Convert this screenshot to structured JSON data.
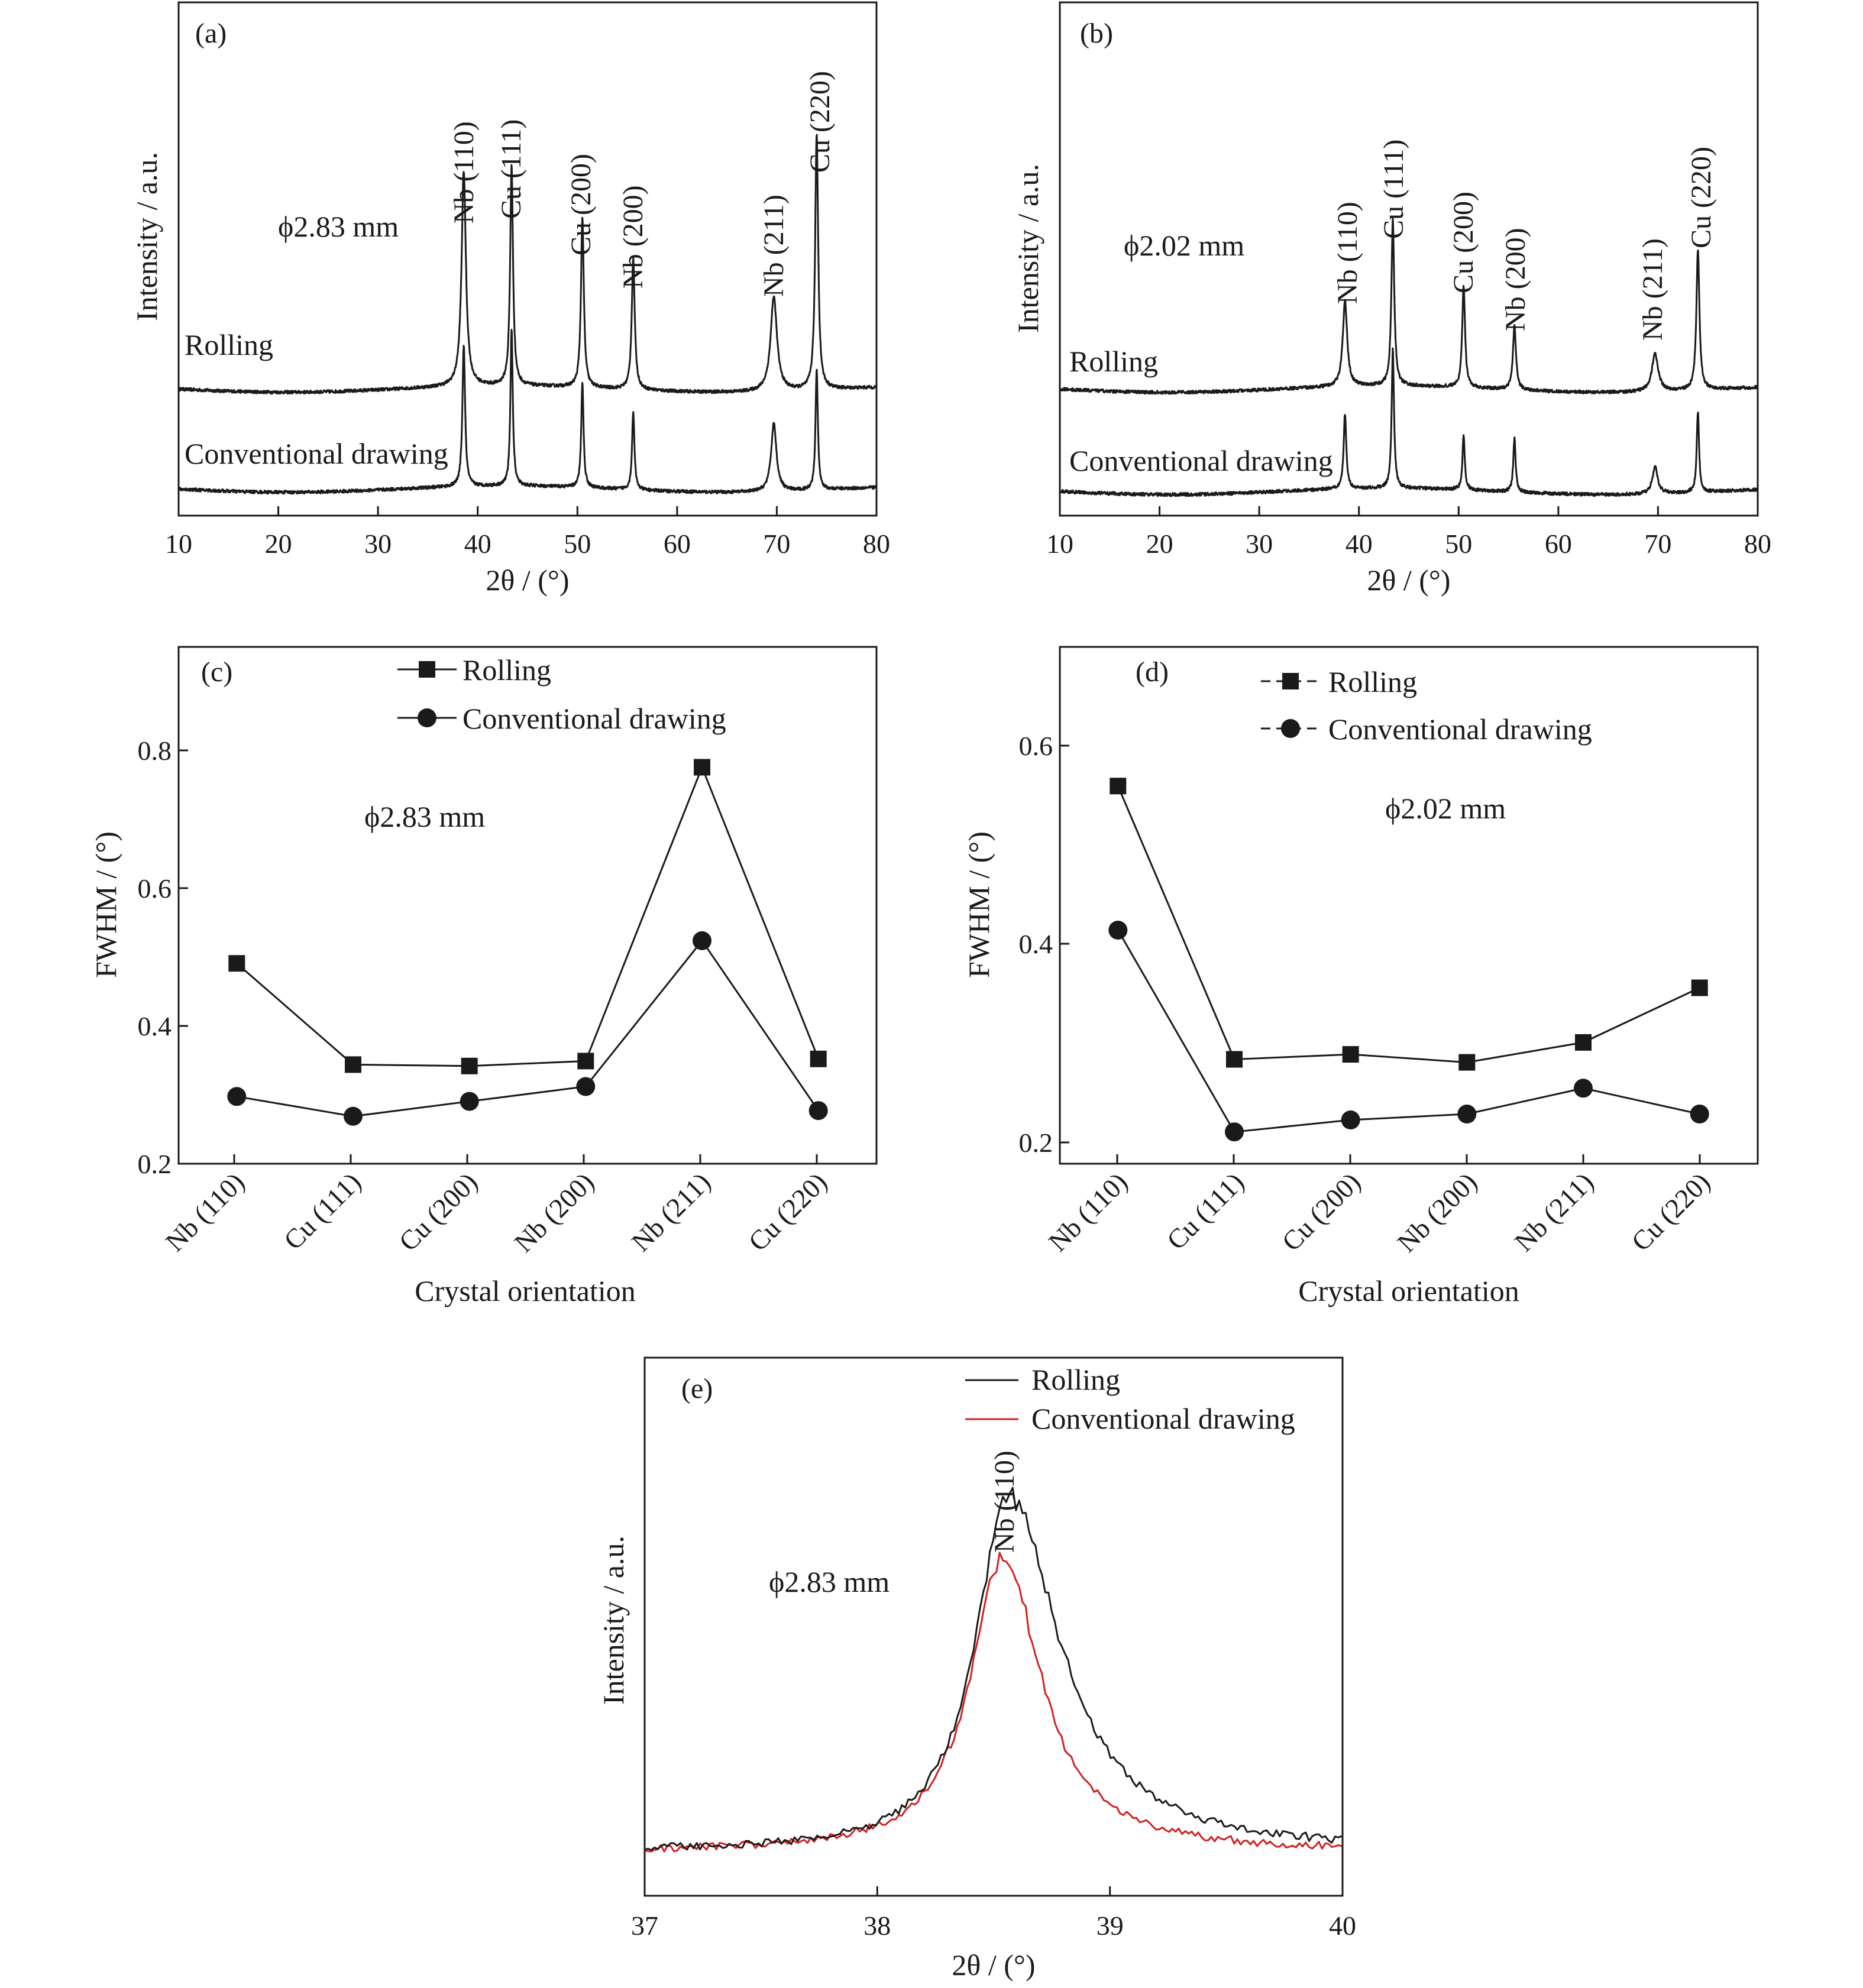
{
  "colors": {
    "axis": "#1a1a1a",
    "rolling": "#1a1a1a",
    "conventional": "#1a1a1a",
    "conventional_e": "#d42020"
  },
  "chart_data": [
    {
      "id": "a",
      "type": "line",
      "panel_label": "(a)",
      "annotation": "ϕ2.83 mm",
      "xlabel": "2θ / (°)",
      "ylabel": "Intensity / a.u.",
      "xlim": [
        10,
        80
      ],
      "xticks": [
        10,
        20,
        30,
        40,
        50,
        60,
        70,
        80
      ],
      "yticks_shown": false,
      "series": [
        {
          "name": "Rolling",
          "baseline": 1.0,
          "peaks": [
            [
              38.6,
              2.05,
              0.26
            ],
            [
              43.4,
              2.1,
              0.17
            ],
            [
              50.5,
              1.62,
              0.17
            ],
            [
              55.6,
              1.25,
              0.18
            ],
            [
              69.7,
              0.9,
              0.38
            ],
            [
              74.0,
              2.43,
              0.18
            ]
          ]
        },
        {
          "name": "Conventional drawing",
          "baseline": 0.05,
          "peaks": [
            [
              38.6,
              1.35,
              0.16
            ],
            [
              43.4,
              1.5,
              0.14
            ],
            [
              50.5,
              1.0,
              0.14
            ],
            [
              55.6,
              0.75,
              0.14
            ],
            [
              69.7,
              0.65,
              0.32
            ],
            [
              74.0,
              1.15,
              0.14
            ]
          ]
        }
      ],
      "peak_labels": [
        {
          "x": 38.6,
          "text": "Nb (110)"
        },
        {
          "x": 43.4,
          "text": "Cu (111)"
        },
        {
          "x": 50.5,
          "text": "Cu (200)"
        },
        {
          "x": 55.6,
          "text": "Nb (200)"
        },
        {
          "x": 69.7,
          "text": "Nb (211)"
        },
        {
          "x": 74.0,
          "text": "Cu (220)"
        }
      ]
    },
    {
      "id": "b",
      "type": "line",
      "panel_label": "(b)",
      "annotation": "ϕ2.02 mm",
      "xlabel": "2θ / (°)",
      "ylabel": "Intensity / a.u.",
      "xlim": [
        10,
        80
      ],
      "xticks": [
        10,
        20,
        30,
        40,
        50,
        60,
        70,
        80
      ],
      "yticks_shown": false,
      "series": [
        {
          "name": "Rolling",
          "baseline": 1.0,
          "peaks": [
            [
              38.6,
              0.8,
              0.26
            ],
            [
              43.4,
              1.55,
              0.17
            ],
            [
              50.5,
              0.95,
              0.17
            ],
            [
              55.6,
              0.6,
              0.18
            ],
            [
              69.7,
              0.35,
              0.38
            ],
            [
              74.0,
              1.3,
              0.18
            ]
          ]
        },
        {
          "name": "Conventional drawing",
          "baseline": 0.05,
          "peaks": [
            [
              38.6,
              0.7,
              0.16
            ],
            [
              43.4,
              1.3,
              0.14
            ],
            [
              50.5,
              0.5,
              0.14
            ],
            [
              55.6,
              0.5,
              0.14
            ],
            [
              69.7,
              0.25,
              0.32
            ],
            [
              74.0,
              0.75,
              0.14
            ]
          ]
        }
      ],
      "peak_labels": [
        {
          "x": 38.6,
          "text": "Nb (110)"
        },
        {
          "x": 43.4,
          "text": "Cu (111)"
        },
        {
          "x": 50.5,
          "text": "Cu (200)"
        },
        {
          "x": 55.6,
          "text": "Nb (200)"
        },
        {
          "x": 69.7,
          "text": "Nb (211)"
        },
        {
          "x": 74.0,
          "text": "Cu (220)"
        }
      ]
    },
    {
      "id": "c",
      "type": "line",
      "panel_label": "(c)",
      "annotation": "ϕ2.83 mm",
      "xlabel": "Crystal orientation",
      "ylabel": "FWHM / (°)",
      "categories": [
        "Nb (110)",
        "Cu (111)",
        "Cu (200)",
        "Nb (200)",
        "Nb (211)",
        "Cu (220)"
      ],
      "ylim": [
        0.2,
        0.93
      ],
      "yticks": [
        0.2,
        0.4,
        0.6,
        0.8
      ],
      "legend_position": "top-center",
      "series": [
        {
          "name": "Rolling",
          "marker": "square",
          "values": [
            0.483,
            0.34,
            0.338,
            0.345,
            0.76,
            0.348
          ]
        },
        {
          "name": "Conventional drawing",
          "marker": "circle",
          "values": [
            0.295,
            0.267,
            0.288,
            0.309,
            0.515,
            0.275
          ]
        }
      ]
    },
    {
      "id": "d",
      "type": "line",
      "panel_label": "(d)",
      "annotation": "ϕ2.02 mm",
      "xlabel": "Crystal orientation",
      "ylabel": "FWHM / (°)",
      "categories": [
        "Nb (110)",
        "Cu (111)",
        "Cu (200)",
        "Nb (200)",
        "Nb (211)",
        "Cu (220)"
      ],
      "ylim": [
        0.18,
        0.7
      ],
      "yticks": [
        0.2,
        0.4,
        0.6
      ],
      "legend_position": "top-center",
      "series": [
        {
          "name": "Rolling",
          "marker": "square",
          "values": [
            0.56,
            0.285,
            0.29,
            0.282,
            0.302,
            0.357
          ]
        },
        {
          "name": "Conventional drawing",
          "marker": "circle",
          "values": [
            0.415,
            0.212,
            0.224,
            0.23,
            0.256,
            0.23
          ]
        }
      ]
    },
    {
      "id": "e",
      "type": "line",
      "panel_label": "(e)",
      "annotation": "ϕ2.83 mm",
      "peak_label": "Nb (110)",
      "xlabel": "2θ / (°)",
      "ylabel": "Intensity / a.u.",
      "xlim": [
        37,
        40
      ],
      "xticks": [
        37,
        38,
        39,
        40
      ],
      "yticks_shown": false,
      "legend_position": "top-right",
      "series": [
        {
          "name": "Rolling",
          "color": "#1a1a1a",
          "peak_center": 38.56,
          "peak_height": 5.5,
          "hw_left": 0.17,
          "hw_right": 0.27
        },
        {
          "name": "Conventional drawing",
          "color": "#d42020",
          "peak_center": 38.54,
          "peak_height": 4.55,
          "hw_left": 0.17,
          "hw_right": 0.2
        }
      ]
    }
  ]
}
